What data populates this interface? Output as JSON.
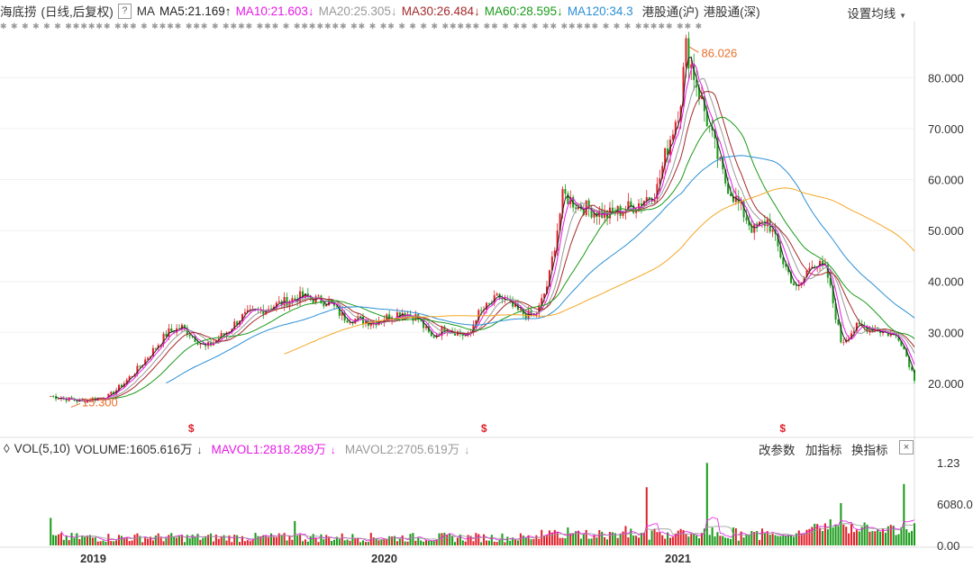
{
  "header": {
    "stock_name": "海底捞",
    "mode": "(日线,后复权)",
    "help_label": "?",
    "indicator": "MA",
    "settings_label": "设置均线"
  },
  "ma_items": [
    {
      "label": "MA5:21.169",
      "arrow": "↑",
      "color": "#222222"
    },
    {
      "label": "MA10:21.603",
      "arrow": "↓",
      "color": "#e619e6"
    },
    {
      "label": "MA20:25.305",
      "arrow": "↓",
      "color": "#999999"
    },
    {
      "label": "MA30:26.484",
      "arrow": "↓",
      "color": "#a52a2a"
    },
    {
      "label": "MA60:28.595",
      "arrow": "↓",
      "color": "#1a9a1a"
    },
    {
      "label": "MA120:34.3",
      "arrow": "",
      "color": "#2a8fd6"
    }
  ],
  "links": [
    "港股通(沪)",
    "港股通(深)"
  ],
  "markers_row": "✱ ✱ ✱ ✱ ✱ ✱ ✱✱✱✱✱✱ ✱✱✱ ✱ ✱✱✱✱ ✱✱✱ ✱ ✱✱✱✱ ✱✱✱ ✱ ✱✱✱✱✱✱✱ ✱✱ ✱ ✱✱ ✱ ✱ ✱ ✱ ✱✱✱✱✱ ✱✱ ✱ ✱✱ ✱ ✱✱ ✱✱✱✱✱ ✱ ✱ ✱ ✱✱✱✱✱ ✱✱ ✱",
  "dividend_marks": [
    "$",
    "$",
    "$"
  ],
  "price_axis": {
    "ticks": [
      "80.000",
      "70.000",
      "60.000",
      "50.000",
      "40.000",
      "30.000",
      "20.000"
    ],
    "tick_values": [
      80,
      70,
      60,
      50,
      40,
      30,
      20
    ],
    "min": 12.2,
    "max": 88.2,
    "high_label": "86.026",
    "low_label": "15.300"
  },
  "volume_panel": {
    "indicator": "VOL(5,10)",
    "volume": "VOLUME:1605.616万",
    "volume_arrow": "↓",
    "mavol1": "MAVOL1:2818.289万",
    "mavol1_arrow": "↓",
    "mavol2": "MAVOL2:2705.619万",
    "mavol2_arrow": "↓",
    "buttons": [
      "改参数",
      "加指标",
      "换指标"
    ],
    "close_label": "×",
    "axis_ticks": [
      "1.23",
      "6080.00",
      "0.00"
    ]
  },
  "x_axis": [
    "2019",
    "2020",
    "2021"
  ],
  "colors": {
    "up": "#e0202a",
    "down": "#1a9a1a",
    "ma5": "#222222",
    "ma10": "#e619e6",
    "ma20": "#999999",
    "ma30": "#a52a2a",
    "ma60": "#1a9a1a",
    "ma120": "#2a8fd6",
    "ma250": "#f5a623",
    "high_low_label": "#e8702a"
  },
  "chart_data": {
    "type": "candlestick",
    "x": [
      "2019",
      "2020",
      "2021"
    ],
    "ylim": [
      12.2,
      88.2
    ],
    "path_years": [
      2018.85,
      2018.95,
      2019.05,
      2019.1,
      2019.15,
      2019.25,
      2019.3,
      2019.38,
      2019.45,
      2019.5,
      2019.6,
      2019.7,
      2019.8,
      2019.85,
      2019.95,
      2020.05,
      2020.1,
      2020.15,
      2020.2,
      2020.28,
      2020.3,
      2020.38,
      2020.45,
      2020.5,
      2020.52,
      2020.55,
      2020.6,
      2020.65,
      2020.75,
      2020.85,
      2020.92,
      2020.95,
      2021.0,
      2021.02,
      2021.05,
      2021.1,
      2021.15,
      2021.2,
      2021.25,
      2021.3,
      2021.35,
      2021.4,
      2021.45,
      2021.5,
      2021.55,
      2021.6,
      2021.65,
      2021.7,
      2021.75,
      2021.8
    ],
    "path_prices": [
      17.5,
      16.5,
      17.5,
      20,
      23,
      30,
      31,
      27,
      30,
      33,
      35,
      37,
      36,
      33,
      32,
      34,
      33,
      29,
      31,
      29,
      33,
      37,
      34,
      33,
      35,
      40,
      57,
      55,
      53,
      55,
      58,
      65,
      75,
      86,
      80,
      70,
      60,
      55,
      50,
      52,
      44,
      38,
      44,
      42,
      28,
      31,
      31,
      30,
      29,
      21
    ],
    "high": 86.026,
    "low": 15.3,
    "ma5": 21.169,
    "ma10": 21.603,
    "ma20": 25.305,
    "ma30": 26.484,
    "ma60": 28.595,
    "ma120": 34.3,
    "volume_wan": 1605.616,
    "mavol1_wan": 2818.289,
    "mavol2_wan": 2705.619,
    "volume_ylim": [
      0,
      8000
    ]
  }
}
